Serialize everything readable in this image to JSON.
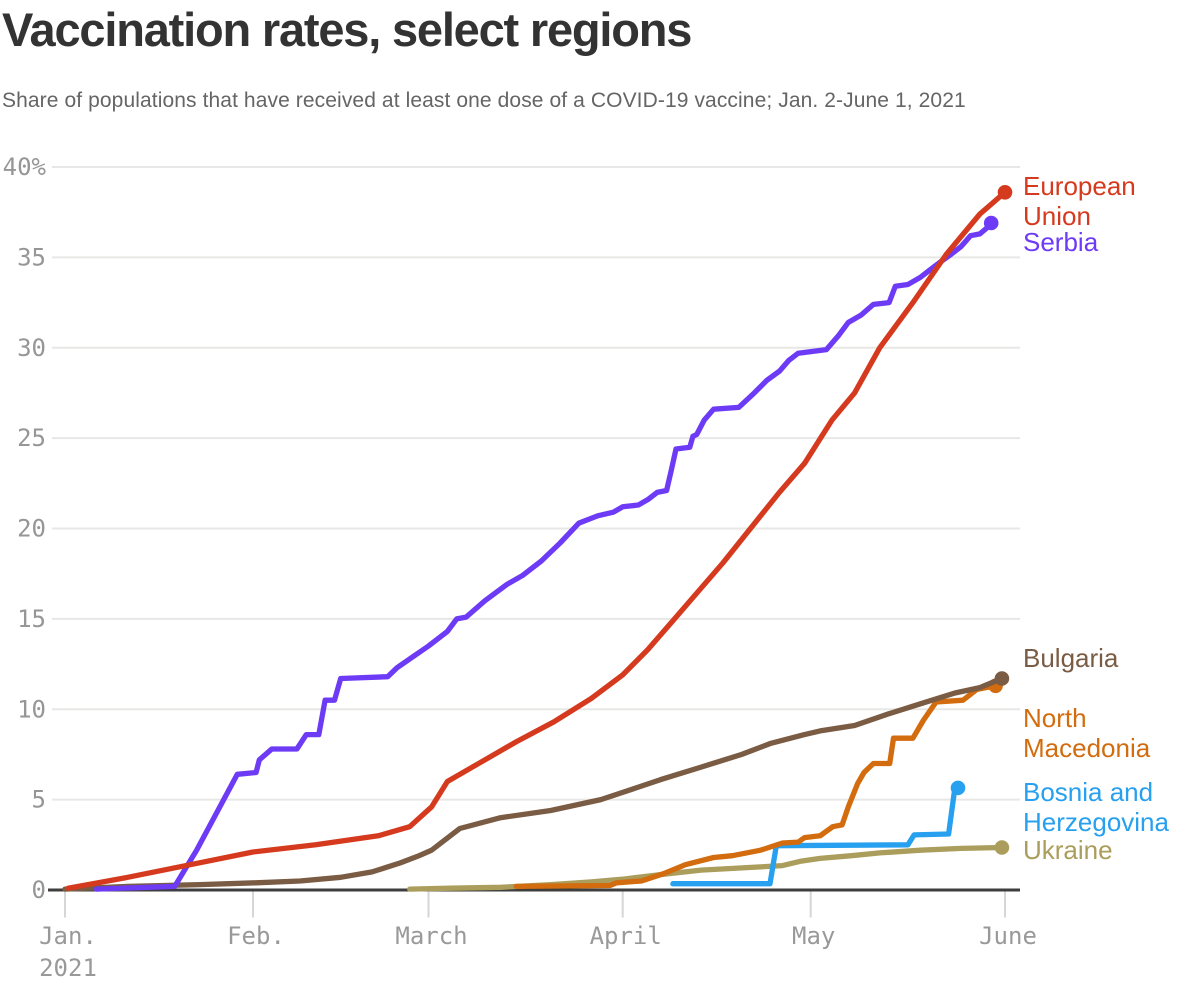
{
  "chart_data": {
    "type": "line",
    "title": "Vaccination rates, select regions",
    "subtitle": "Share of populations that have received at least one dose of a COVID-19 vaccine; Jan. 2-June 1, 2021",
    "legend_position": "right-edge-direct-labels",
    "grid": "horizontal-only",
    "x_axis": {
      "unit": "days since Jan. 2, 2021",
      "range_days": [
        0,
        150
      ],
      "tick_days": [
        0,
        30,
        58,
        89,
        119,
        150
      ],
      "tick_labels": [
        "Jan.",
        "Feb.",
        "March",
        "April",
        "May",
        "June"
      ],
      "first_tick_sub_label": "2021"
    },
    "y_axis": {
      "unit": "percent of population",
      "range": [
        0,
        40
      ],
      "ticks": [
        0,
        5,
        10,
        15,
        20,
        25,
        30,
        35,
        40
      ],
      "tick_labels": [
        "0",
        "5",
        "10",
        "15",
        "20",
        "25",
        "30",
        "35",
        "40%"
      ]
    },
    "colors": {
      "axis_line": "#3e3e3e",
      "gridline": "#e7e7e5",
      "tick_mark": "#d6d6d6",
      "tick_text": "#969696",
      "title_text": "#333333",
      "subtitle_text": "#656565"
    },
    "series": [
      {
        "id": "ukraine",
        "name": "Ukraine",
        "label_lines": [
          "Ukraine"
        ],
        "color": "#ab9d5b",
        "end_value_pct": 2.4,
        "points": [
          [
            55,
            0.05
          ],
          [
            61.5,
            0.1
          ],
          [
            69.5,
            0.15
          ],
          [
            77.5,
            0.3
          ],
          [
            84,
            0.45
          ],
          [
            89,
            0.6
          ],
          [
            95,
            0.85
          ],
          [
            101.5,
            1.1
          ],
          [
            109.5,
            1.25
          ],
          [
            114.5,
            1.35
          ],
          [
            117.5,
            1.6
          ],
          [
            120.5,
            1.75
          ],
          [
            125.5,
            1.9
          ],
          [
            130,
            2.05
          ],
          [
            136.5,
            2.2
          ],
          [
            143,
            2.3
          ],
          [
            149.5,
            2.35
          ]
        ]
      },
      {
        "id": "bosnia-and-herzegovina",
        "name": "Bosnia and Herzegovina",
        "label_lines": [
          "Bosnia and",
          "Herzegovina"
        ],
        "color": "#27a0ef",
        "end_value_pct": 5.7,
        "points": [
          [
            97,
            0.35
          ],
          [
            112.5,
            0.35
          ],
          [
            113.5,
            2.45
          ],
          [
            134.5,
            2.5
          ],
          [
            135.5,
            3.05
          ],
          [
            141,
            3.1
          ],
          [
            142,
            5.65
          ],
          [
            142.5,
            5.65
          ]
        ]
      },
      {
        "id": "north-macedonia",
        "name": "North Macedonia",
        "label_lines": [
          "North",
          "Macedonia"
        ],
        "color": "#d26c0e",
        "end_value_pct": 11.3,
        "points": [
          [
            72,
            0.2
          ],
          [
            87,
            0.25
          ],
          [
            88,
            0.4
          ],
          [
            92,
            0.5
          ],
          [
            95.5,
            0.9
          ],
          [
            99,
            1.4
          ],
          [
            103.5,
            1.8
          ],
          [
            106.5,
            1.9
          ],
          [
            111,
            2.2
          ],
          [
            114.5,
            2.6
          ],
          [
            117,
            2.65
          ],
          [
            118,
            2.9
          ],
          [
            120.5,
            3
          ],
          [
            122.5,
            3.5
          ],
          [
            124,
            3.6
          ],
          [
            125,
            4.6
          ],
          [
            126.5,
            5.9
          ],
          [
            127.5,
            6.5
          ],
          [
            129,
            7
          ],
          [
            131.6,
            7
          ],
          [
            132.2,
            8.4
          ],
          [
            135.3,
            8.4
          ],
          [
            137,
            9.4
          ],
          [
            139,
            10.4
          ],
          [
            143.3,
            10.5
          ],
          [
            145.5,
            11.1
          ],
          [
            148.5,
            11.3
          ]
        ]
      },
      {
        "id": "bulgaria",
        "name": "Bulgaria",
        "label_lines": [
          "Bulgaria"
        ],
        "color": "#7a5b43",
        "end_value_pct": 11.7,
        "points": [
          [
            0,
            0.05
          ],
          [
            10,
            0.2
          ],
          [
            21.5,
            0.3
          ],
          [
            30.5,
            0.4
          ],
          [
            37.5,
            0.5
          ],
          [
            44,
            0.7
          ],
          [
            49,
            1
          ],
          [
            53.5,
            1.5
          ],
          [
            56.5,
            1.9
          ],
          [
            58.5,
            2.2
          ],
          [
            63,
            3.4
          ],
          [
            69.5,
            4
          ],
          [
            77.5,
            4.4
          ],
          [
            85.5,
            5
          ],
          [
            89,
            5.4
          ],
          [
            95,
            6.1
          ],
          [
            101.5,
            6.8
          ],
          [
            108,
            7.5
          ],
          [
            112.5,
            8.1
          ],
          [
            118,
            8.6
          ],
          [
            120.5,
            8.8
          ],
          [
            126,
            9.1
          ],
          [
            131,
            9.7
          ],
          [
            136.5,
            10.3
          ],
          [
            142,
            10.9
          ],
          [
            146,
            11.2
          ],
          [
            149.5,
            11.7
          ]
        ]
      },
      {
        "id": "serbia",
        "name": "Serbia",
        "label_lines": [
          "Serbia"
        ],
        "color": "#6d3bf5",
        "end_value_pct": 36.9,
        "points": [
          [
            5,
            0.05
          ],
          [
            17.5,
            0.2
          ],
          [
            21,
            2.2
          ],
          [
            27.5,
            6.4
          ],
          [
            30.5,
            6.5
          ],
          [
            31,
            7.2
          ],
          [
            33,
            7.8
          ],
          [
            37,
            7.8
          ],
          [
            38.5,
            8.6
          ],
          [
            40.5,
            8.6
          ],
          [
            41.5,
            10.5
          ],
          [
            43,
            10.5
          ],
          [
            44,
            11.7
          ],
          [
            51.5,
            11.8
          ],
          [
            53,
            12.3
          ],
          [
            55.5,
            12.9
          ],
          [
            58,
            13.5
          ],
          [
            61,
            14.3
          ],
          [
            62.5,
            15
          ],
          [
            64,
            15.1
          ],
          [
            67,
            16
          ],
          [
            70.5,
            16.9
          ],
          [
            73,
            17.4
          ],
          [
            76,
            18.2
          ],
          [
            79,
            19.2
          ],
          [
            82,
            20.3
          ],
          [
            85,
            20.7
          ],
          [
            87.5,
            20.9
          ],
          [
            89,
            21.2
          ],
          [
            91.5,
            21.3
          ],
          [
            93,
            21.6
          ],
          [
            94.5,
            22
          ],
          [
            96,
            22.1
          ],
          [
            96.8,
            23.3
          ],
          [
            97.5,
            24.4
          ],
          [
            99.7,
            24.5
          ],
          [
            100.2,
            25.1
          ],
          [
            100.8,
            25.2
          ],
          [
            102,
            26
          ],
          [
            103.5,
            26.6
          ],
          [
            107.5,
            26.7
          ],
          [
            110,
            27.5
          ],
          [
            112,
            28.2
          ],
          [
            114,
            28.7
          ],
          [
            115.5,
            29.3
          ],
          [
            117,
            29.7
          ],
          [
            121.5,
            29.9
          ],
          [
            123.5,
            30.7
          ],
          [
            125,
            31.4
          ],
          [
            127,
            31.8
          ],
          [
            129,
            32.4
          ],
          [
            131.5,
            32.5
          ],
          [
            132.5,
            33.4
          ],
          [
            134.5,
            33.5
          ],
          [
            136.5,
            33.9
          ],
          [
            138,
            34.3
          ],
          [
            139.5,
            34.7
          ],
          [
            141.5,
            35.2
          ],
          [
            143,
            35.6
          ],
          [
            144.5,
            36.2
          ],
          [
            146,
            36.3
          ],
          [
            147,
            36.6
          ],
          [
            147.8,
            36.9
          ]
        ]
      },
      {
        "id": "european-union",
        "name": "European Union",
        "label_lines": [
          "European",
          "Union"
        ],
        "color": "#d53a1e",
        "end_value_pct": 38.6,
        "points": [
          [
            0.5,
            0.1
          ],
          [
            10,
            0.7
          ],
          [
            20,
            1.4
          ],
          [
            30,
            2.1
          ],
          [
            40,
            2.5
          ],
          [
            50,
            3
          ],
          [
            55,
            3.5
          ],
          [
            58.5,
            4.6
          ],
          [
            61,
            6
          ],
          [
            66,
            7
          ],
          [
            72,
            8.2
          ],
          [
            78,
            9.3
          ],
          [
            84,
            10.6
          ],
          [
            89,
            11.9
          ],
          [
            93,
            13.3
          ],
          [
            97,
            14.9
          ],
          [
            101,
            16.5
          ],
          [
            105,
            18.1
          ],
          [
            108,
            19.4
          ],
          [
            111,
            20.7
          ],
          [
            114,
            22
          ],
          [
            118,
            23.6
          ],
          [
            122.4,
            26
          ],
          [
            126,
            27.5
          ],
          [
            130,
            30
          ],
          [
            135.3,
            32.5
          ],
          [
            140.7,
            35.2
          ],
          [
            146,
            37.4
          ],
          [
            148,
            38
          ],
          [
            150,
            38.6
          ]
        ]
      }
    ]
  }
}
